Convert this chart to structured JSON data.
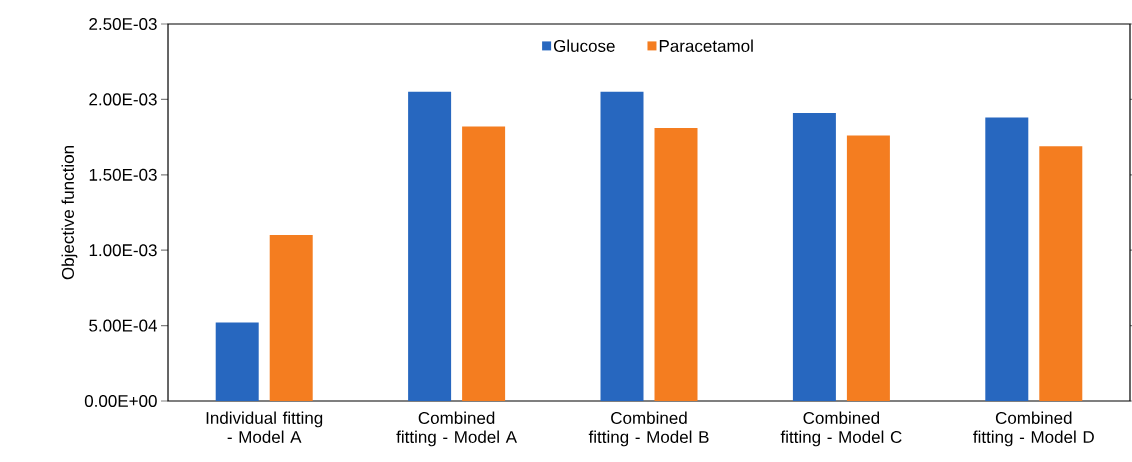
{
  "chart_data": {
    "type": "bar",
    "ylabel": "Objective function",
    "categories": [
      "Individual fitting - Model A",
      "Combined fitting - Model A",
      "Combined fitting - Model B",
      "Combined fitting - Model C",
      "Combined fitting - Model D"
    ],
    "series": [
      {
        "name": "Glucose",
        "color": "#2767bf",
        "values": [
          0.00052,
          0.00205,
          0.00205,
          0.00191,
          0.00188
        ]
      },
      {
        "name": "Paracetamol",
        "color": "#f47d20",
        "values": [
          0.0011,
          0.00182,
          0.00181,
          0.00176,
          0.00169
        ]
      }
    ],
    "ylim": [
      0,
      0.0025
    ],
    "yticks": [
      {
        "value": 0,
        "label": "0.00E+00"
      },
      {
        "value": 0.0005,
        "label": "5.00E-04"
      },
      {
        "value": 0.001,
        "label": "1.00E-03"
      },
      {
        "value": 0.0015,
        "label": "1.50E-03"
      },
      {
        "value": 0.002,
        "label": "2.00E-03"
      },
      {
        "value": 0.0025,
        "label": "2.50E-03"
      }
    ],
    "legend": "top"
  }
}
